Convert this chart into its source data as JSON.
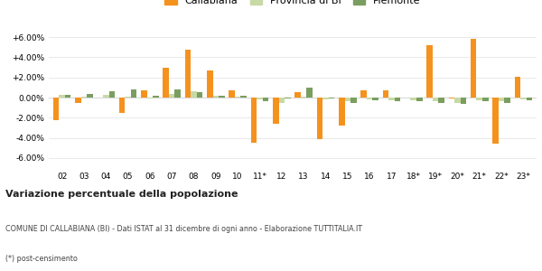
{
  "years": [
    "02",
    "03",
    "04",
    "05",
    "06",
    "07",
    "08",
    "09",
    "10",
    "11*",
    "12",
    "13",
    "14",
    "15",
    "16",
    "17",
    "18*",
    "19*",
    "20*",
    "21*",
    "22*",
    "23*"
  ],
  "callabiana": [
    -2.2,
    -0.5,
    0.0,
    -1.5,
    0.7,
    3.0,
    4.8,
    2.7,
    0.7,
    -4.5,
    -2.6,
    0.5,
    -4.1,
    -2.8,
    0.7,
    0.7,
    0.0,
    5.2,
    -0.1,
    5.8,
    -4.6,
    2.1
  ],
  "provincia_bi": [
    0.3,
    0.1,
    0.3,
    0.1,
    -0.1,
    0.4,
    0.6,
    0.2,
    0.1,
    -0.2,
    -0.5,
    0.1,
    -0.2,
    -0.4,
    -0.2,
    -0.3,
    -0.3,
    -0.4,
    -0.5,
    -0.3,
    -0.4,
    -0.2
  ],
  "piemonte": [
    0.3,
    0.4,
    0.6,
    0.8,
    0.2,
    0.8,
    0.5,
    0.15,
    0.15,
    -0.35,
    -0.1,
    1.0,
    -0.1,
    -0.5,
    -0.3,
    -0.4,
    -0.4,
    -0.5,
    -0.6,
    -0.4,
    -0.5,
    -0.3
  ],
  "color_callabiana": "#f5921e",
  "color_provincia": "#c8d9a5",
  "color_piemonte": "#7a9e5f",
  "title": "Variazione percentuale della popolazione",
  "subtitle": "COMUNE DI CALLABIANA (BI) - Dati ISTAT al 31 dicembre di ogni anno - Elaborazione TUTTITALIA.IT",
  "footnote": "(*) post-censimento",
  "ylim": [
    -7.0,
    7.0
  ],
  "yticks": [
    -6.0,
    -4.0,
    -2.0,
    0.0,
    2.0,
    4.0,
    6.0
  ],
  "bg_color": "#ffffff",
  "grid_color": "#e0e0e0"
}
